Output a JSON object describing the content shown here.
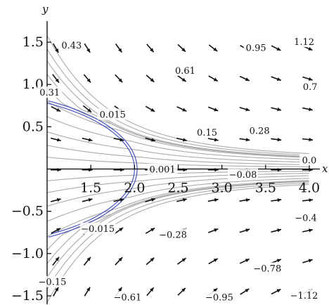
{
  "chart_data": {
    "type": "streamplot",
    "title": "",
    "xlabel": "x",
    "ylabel": "y",
    "xlim": [
      1.0,
      4.0
    ],
    "ylim": [
      -1.6,
      1.6
    ],
    "x_ticks": [
      {
        "value": 1.5,
        "label": "1.5"
      },
      {
        "value": 2.0,
        "label": "2.0"
      },
      {
        "value": 2.5,
        "label": "2.5"
      },
      {
        "value": 3.0,
        "label": "3.0"
      },
      {
        "value": 3.5,
        "label": "3.5"
      },
      {
        "value": 4.0,
        "label": "4.0"
      }
    ],
    "y_ticks": [
      {
        "value": 1.5,
        "label": "1.5"
      },
      {
        "value": 1.0,
        "label": "1.0"
      },
      {
        "value": 0.5,
        "label": "0.5"
      },
      {
        "value": -0.5,
        "label": "−0.5"
      },
      {
        "value": -1.0,
        "label": "−1.0"
      },
      {
        "value": -1.5,
        "label": "−1.5"
      }
    ],
    "streamline_start_y": [
      1.58,
      1.42,
      1.28,
      1.12,
      0.96,
      0.8,
      0.62,
      0.44,
      0.28,
      0.14,
      -0.14,
      -0.28,
      -0.44,
      -0.62,
      -0.8,
      -0.96,
      -1.12,
      -1.28,
      -1.42,
      -1.58
    ],
    "boundary_curve": {
      "a": 2.0,
      "b": 0.9,
      "color": "#4455bb"
    },
    "contour_labels": [
      {
        "x": 1.28,
        "y": 1.46,
        "text": "0.43"
      },
      {
        "x": 2.58,
        "y": 1.16,
        "text": "0.61"
      },
      {
        "x": 3.39,
        "y": 1.43,
        "text": "0.95"
      },
      {
        "x": 3.94,
        "y": 1.5,
        "text": "1.12"
      },
      {
        "x": 4.01,
        "y": 0.97,
        "text": "0.7"
      },
      {
        "x": 1.03,
        "y": 0.9,
        "text": "0.31"
      },
      {
        "x": 1.75,
        "y": 0.64,
        "text": "0.015"
      },
      {
        "x": 2.83,
        "y": 0.43,
        "text": "0.15"
      },
      {
        "x": 3.43,
        "y": 0.45,
        "text": "0.28"
      },
      {
        "x": 4.0,
        "y": 0.1,
        "text": "0.0"
      },
      {
        "x": 2.32,
        "y": -0.01,
        "text": "0.001"
      },
      {
        "x": 3.24,
        "y": -0.07,
        "text": "−0.08"
      },
      {
        "x": 1.58,
        "y": -0.71,
        "text": "−0.015"
      },
      {
        "x": 2.44,
        "y": -0.78,
        "text": "−0.28"
      },
      {
        "x": 3.96,
        "y": -0.58,
        "text": "−0.4"
      },
      {
        "x": 1.06,
        "y": -1.34,
        "text": "−0.15"
      },
      {
        "x": 3.52,
        "y": -1.18,
        "text": "−0.78"
      },
      {
        "x": 1.92,
        "y": -1.52,
        "text": "−0.61"
      },
      {
        "x": 2.97,
        "y": -1.52,
        "text": "−0.95"
      },
      {
        "x": 3.94,
        "y": -1.5,
        "text": "−1.12"
      }
    ],
    "grid": false,
    "legend": "none",
    "colors": {
      "streamline": "#aaaaaa",
      "arrow": "#111111",
      "axis": "#000000"
    }
  }
}
